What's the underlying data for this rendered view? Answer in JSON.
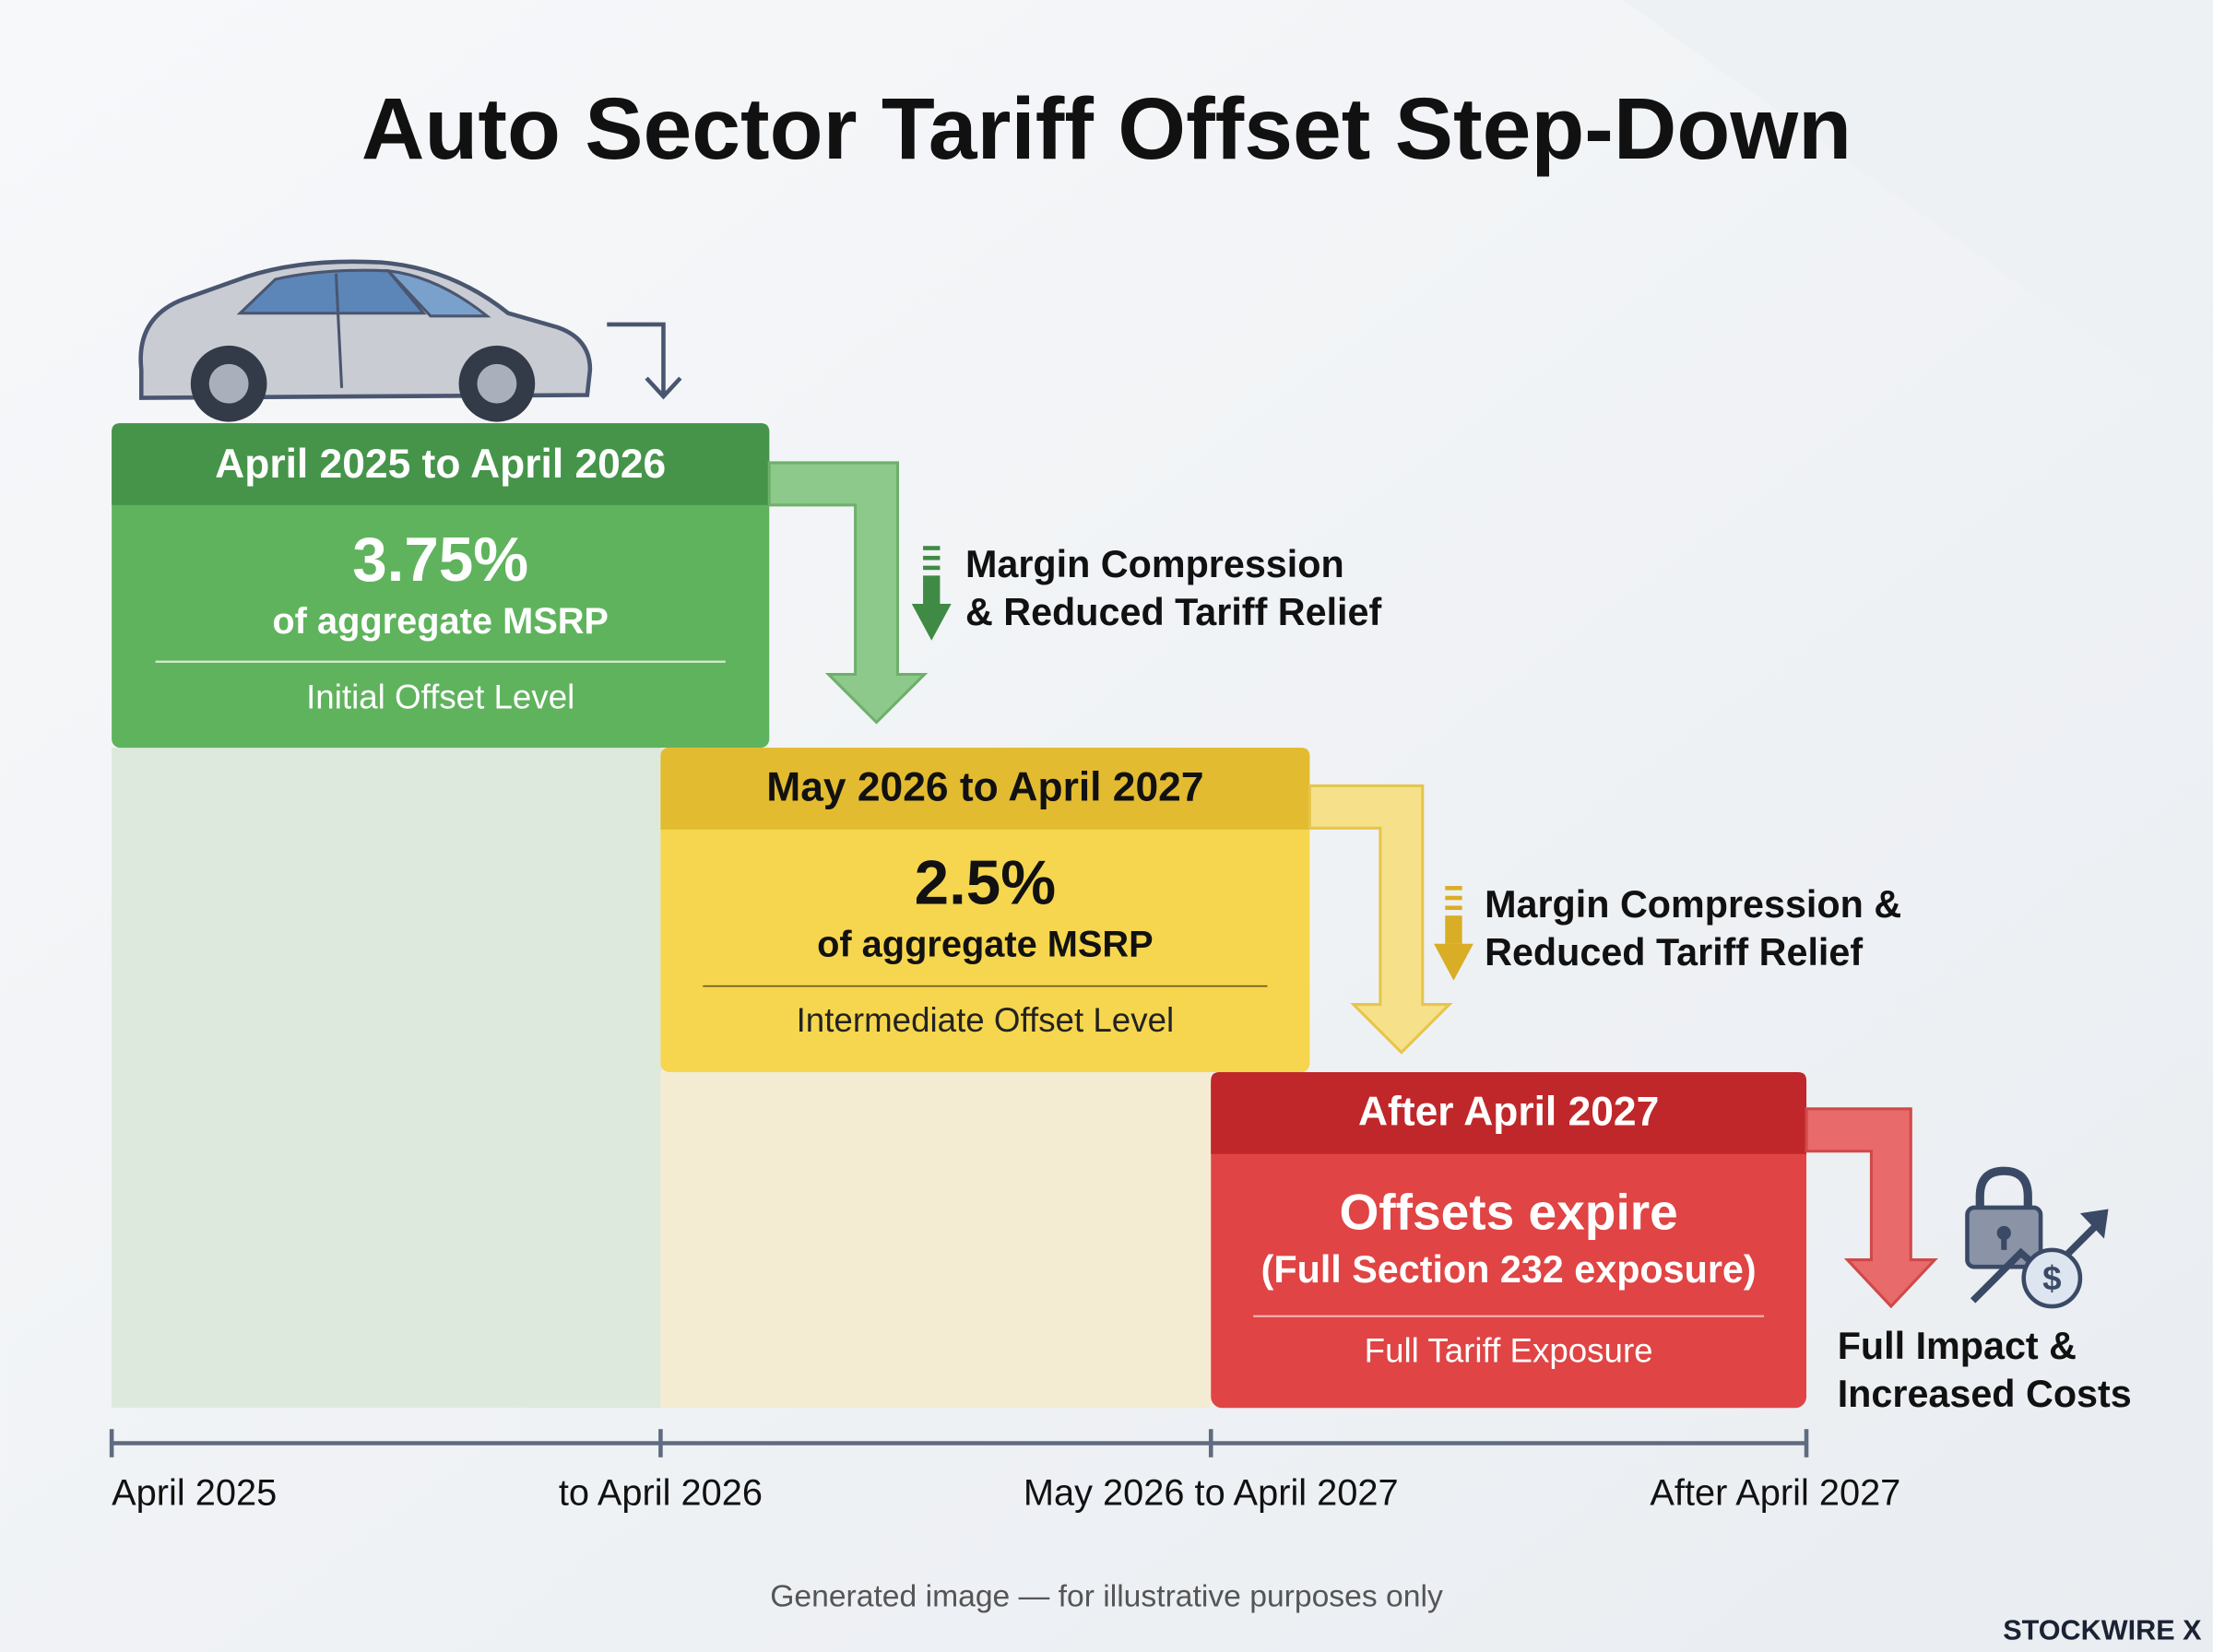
{
  "title": "Auto Sector Tariff Offset Step-Down",
  "stages": [
    {
      "period": "April 2025 to April 2026",
      "value": "3.75%",
      "unit": "of aggregate MSRP",
      "level": "Initial Offset Level"
    },
    {
      "period": "May 2026 to April 2027",
      "value": "2.5%",
      "unit": "of aggregate MSRP",
      "level": "Intermediate Offset Level"
    },
    {
      "period": "After April 2027",
      "value": "Offsets expire",
      "unit": "(Full Section 232 exposure)",
      "level": "Full Tariff Exposure"
    }
  ],
  "annotations": [
    {
      "lines": [
        "Margin Compression",
        "& Reduced Tariff Relief"
      ]
    },
    {
      "lines": [
        "Margin Compression &",
        "Reduced Tariff Relief"
      ]
    },
    {
      "lines": [
        "Full Impact &",
        "Increased Costs"
      ]
    }
  ],
  "timeline": [
    "April 2025",
    "to April 2026",
    "May 2026 to April 2027",
    "After April 2027"
  ],
  "footer": "Generated image — for illustrative purposes only",
  "brand": "STOCKWIRE X"
}
